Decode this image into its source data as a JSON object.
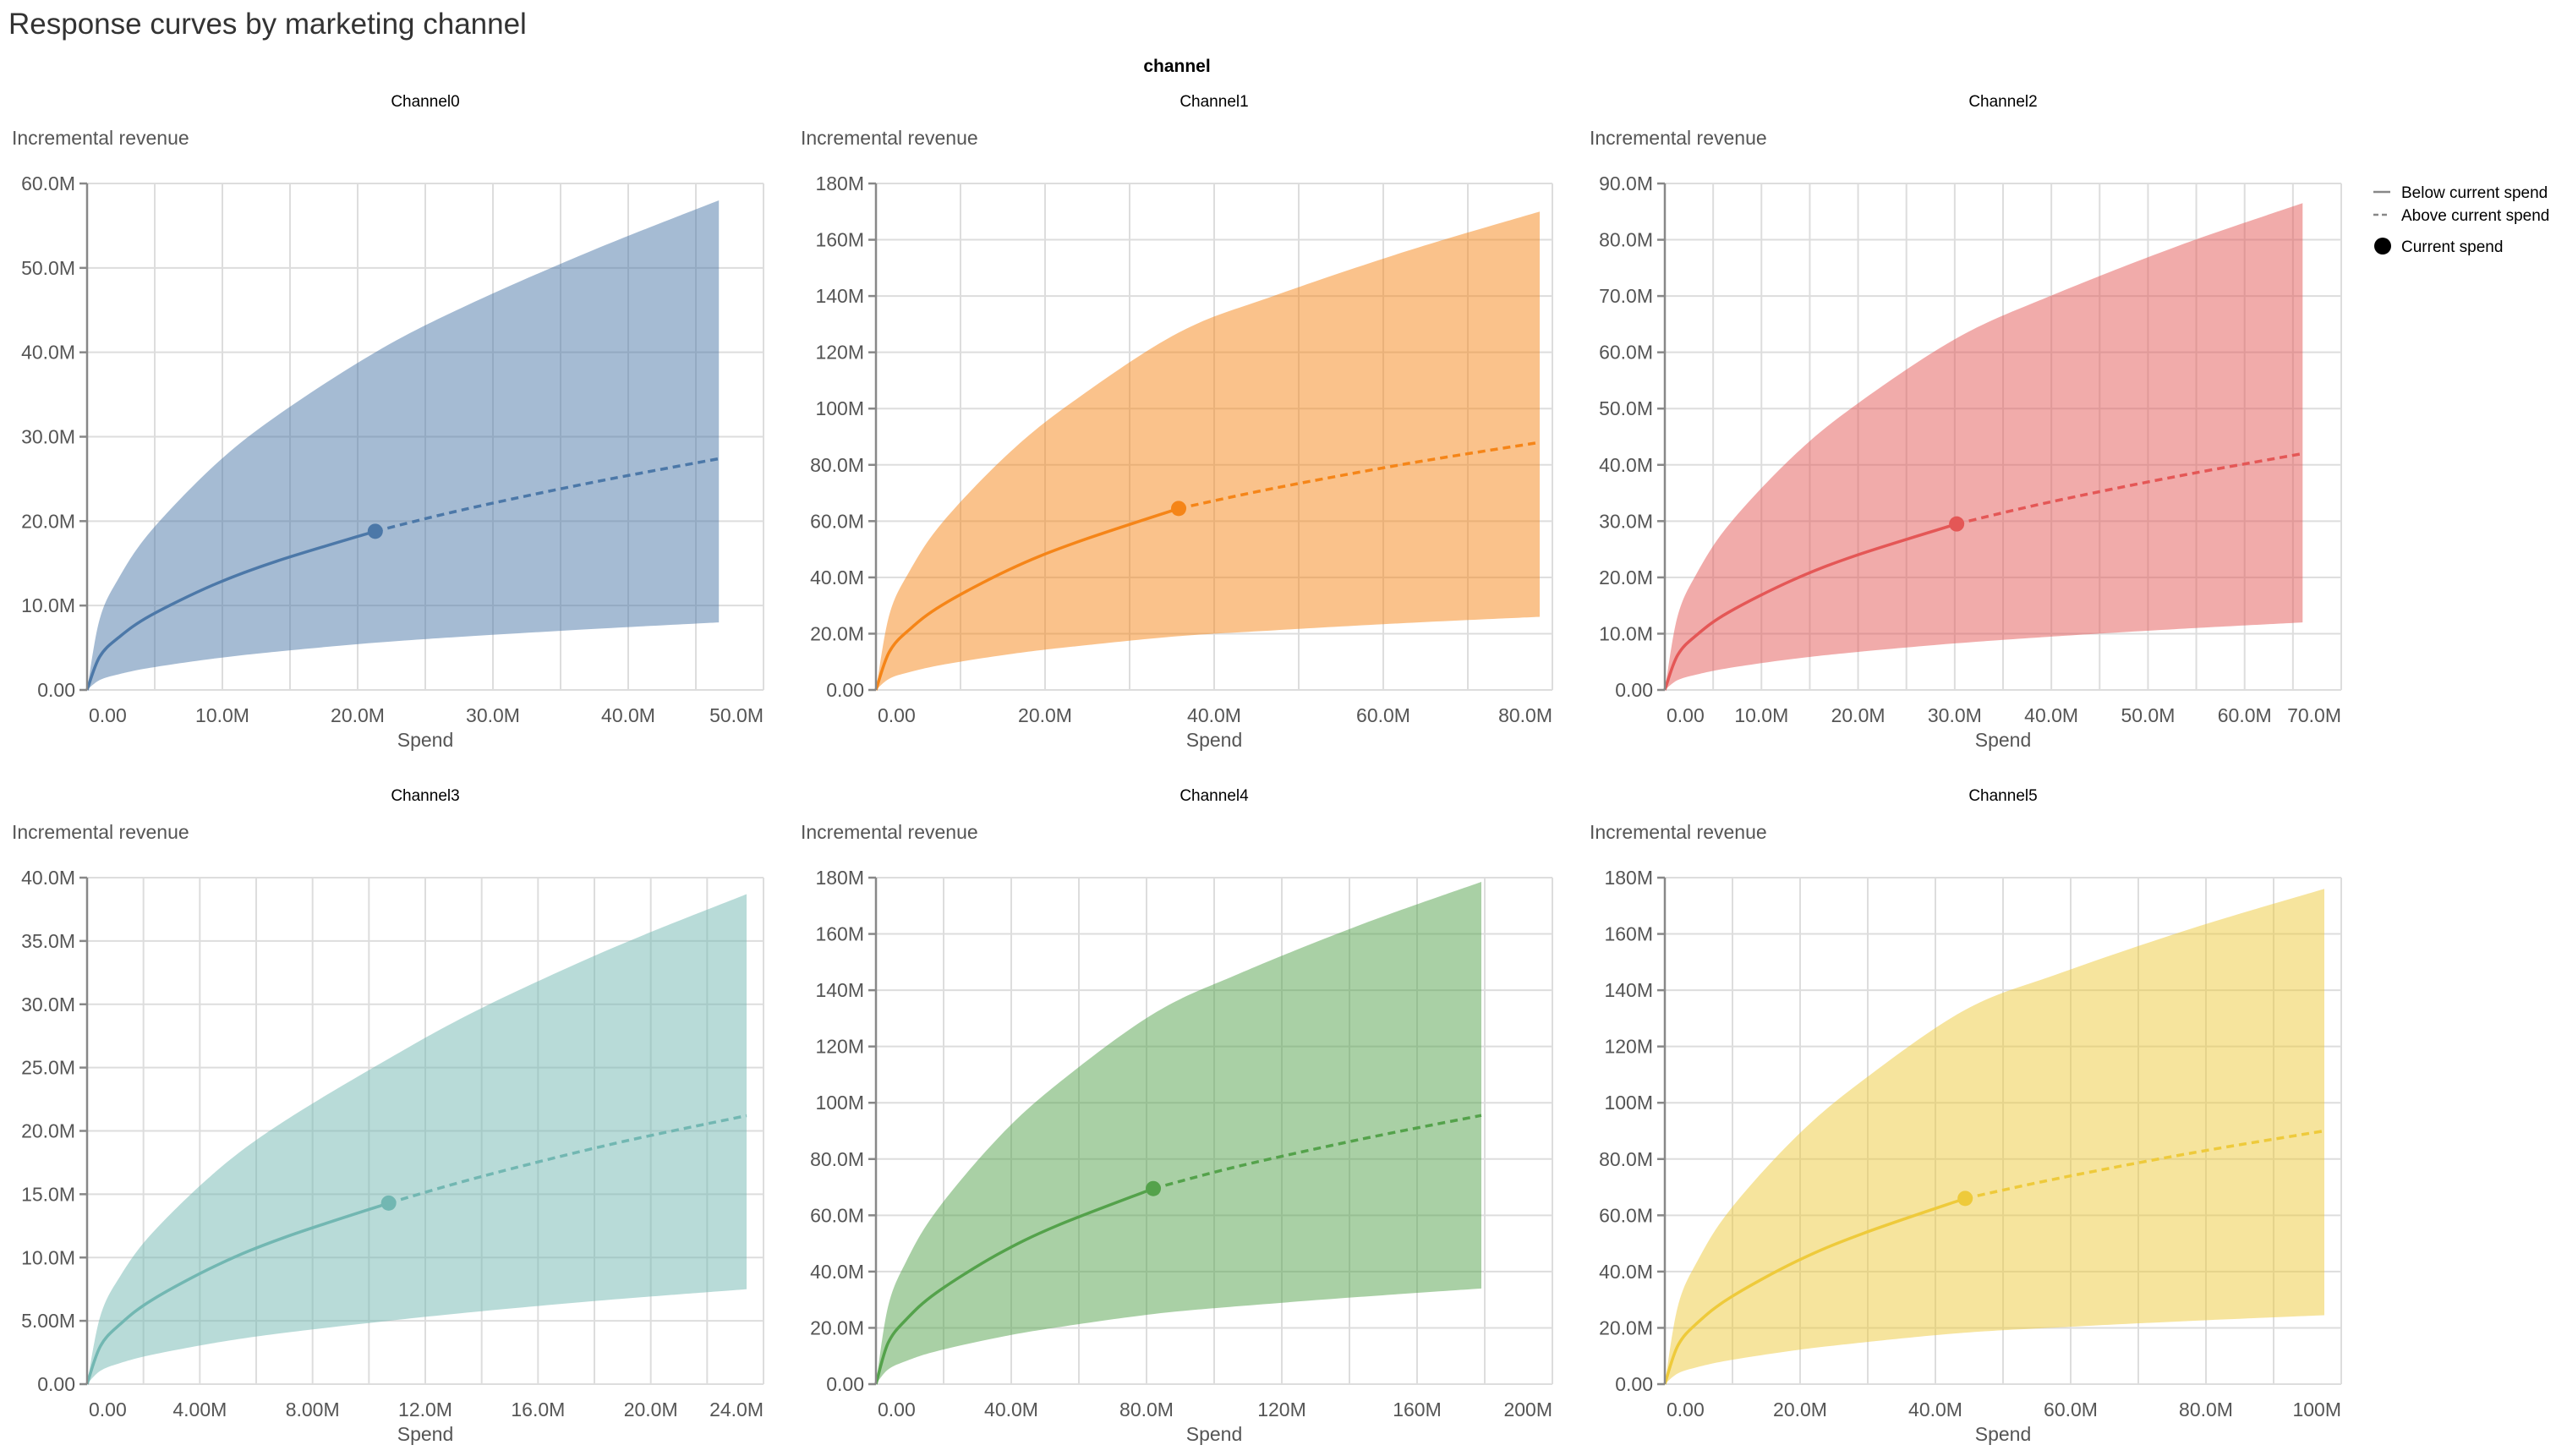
{
  "title": "Response curves by marketing channel",
  "facet_header": "channel",
  "legend": {
    "items": [
      {
        "label": "Below current spend",
        "symbol": "solid-line"
      },
      {
        "label": "Above current spend",
        "symbol": "dashed-line"
      },
      {
        "label": "Current spend",
        "symbol": "filled-circle"
      }
    ],
    "color": "#888888",
    "placement": "right"
  },
  "chart_data": [
    {
      "type": "area+line",
      "title": "Channel0",
      "xlabel": "Spend",
      "ylabel": "Incremental revenue",
      "color": "#4c78a8",
      "grid": true,
      "units": "M",
      "xlim": [
        0,
        50
      ],
      "ylim": [
        0,
        60
      ],
      "x_grid_step": 5,
      "y_grid_step": 10,
      "x_ticks": {
        "values": [
          0,
          10,
          20,
          30,
          40,
          50
        ],
        "labels": [
          "0.00",
          "10.0M",
          "20.0M",
          "30.0M",
          "40.0M",
          "50.0M"
        ]
      },
      "y_ticks": {
        "values": [
          0,
          10,
          20,
          30,
          40,
          50,
          60
        ],
        "labels": [
          "0.00",
          "10.0M",
          "20.0M",
          "30.0M",
          "40.0M",
          "50.0M",
          "60.0M"
        ]
      },
      "x": [
        0,
        0.93,
        2.34,
        4.67,
        9.34,
        14.0,
        21.3,
        28.0,
        37.4,
        46.7
      ],
      "mean": [
        0,
        3.94,
        6.22,
        8.8,
        12.45,
        15.25,
        18.8,
        21.43,
        24.6,
        27.4
      ],
      "lower": [
        0,
        1.17,
        1.85,
        2.62,
        3.71,
        4.54,
        5.6,
        6.33,
        7.22,
        8.0
      ],
      "upper": [
        0,
        8.38,
        13.24,
        18.73,
        26.49,
        32.44,
        40.0,
        45.5,
        52.1,
        58.0
      ],
      "current_spend": {
        "x": 21.3,
        "y": 18.8
      }
    },
    {
      "type": "area+line",
      "title": "Channel1",
      "xlabel": "Spend",
      "ylabel": "Incremental revenue",
      "color": "#f58518",
      "grid": true,
      "units": "M",
      "xlim": [
        0,
        80
      ],
      "ylim": [
        0,
        180
      ],
      "x_grid_step": 10,
      "y_grid_step": 20,
      "x_ticks": {
        "values": [
          0,
          20,
          40,
          60,
          80
        ],
        "labels": [
          "0.00",
          "20.0M",
          "40.0M",
          "60.0M",
          "80.0M"
        ]
      },
      "y_ticks": {
        "values": [
          0,
          20,
          40,
          60,
          80,
          100,
          120,
          140,
          160,
          180
        ],
        "labels": [
          "0.00",
          "20.0M",
          "40.0M",
          "60.0M",
          "80.0M",
          "100M",
          "120M",
          "140M",
          "160M",
          "180M"
        ]
      },
      "x": [
        0,
        1.57,
        3.93,
        7.85,
        15.7,
        23.55,
        35.8,
        47.1,
        62.8,
        78.5
      ],
      "mean": [
        0,
        13.5,
        21.4,
        30.2,
        42.7,
        52.3,
        64.5,
        71.7,
        80.4,
        88.0
      ],
      "lower": [
        0,
        4.0,
        6.32,
        8.94,
        12.65,
        15.49,
        19.1,
        21.2,
        23.8,
        26.0
      ],
      "upper": [
        0,
        26.6,
        42.0,
        59.5,
        84.1,
        103.0,
        127.0,
        140.1,
        156.0,
        170.0
      ],
      "current_spend": {
        "x": 35.8,
        "y": 64.5
      }
    },
    {
      "type": "area+line",
      "title": "Channel2",
      "xlabel": "Spend",
      "ylabel": "Incremental revenue",
      "color": "#e45756",
      "grid": true,
      "units": "M",
      "xlim": [
        0,
        70
      ],
      "ylim": [
        0,
        90
      ],
      "x_grid_step": 5,
      "y_grid_step": 10,
      "x_ticks": {
        "values": [
          0,
          10,
          20,
          30,
          40,
          50,
          60,
          70
        ],
        "labels": [
          "0.00",
          "10.0M",
          "20.0M",
          "30.0M",
          "40.0M",
          "50.0M",
          "60.0M",
          "70.0M"
        ]
      },
      "y_ticks": {
        "values": [
          0,
          10,
          20,
          30,
          40,
          50,
          60,
          70,
          80,
          90
        ],
        "labels": [
          "0.00",
          "10.0M",
          "20.0M",
          "30.0M",
          "40.0M",
          "50.0M",
          "60.0M",
          "70.0M",
          "80.0M",
          "90.0M"
        ]
      },
      "x": [
        0,
        1.32,
        3.3,
        6.6,
        13.2,
        19.8,
        30.2,
        39.6,
        52.8,
        66.0
      ],
      "mean": [
        0,
        6.18,
        9.77,
        13.8,
        19.5,
        23.9,
        29.5,
        33.3,
        37.9,
        42.0
      ],
      "lower": [
        0,
        1.74,
        2.75,
        3.89,
        5.5,
        6.73,
        8.3,
        9.43,
        10.8,
        12.0
      ],
      "upper": [
        0,
        13.1,
        20.7,
        29.3,
        41.4,
        50.7,
        62.5,
        69.8,
        78.7,
        86.5
      ],
      "current_spend": {
        "x": 30.2,
        "y": 29.5
      }
    },
    {
      "type": "area+line",
      "title": "Channel3",
      "xlabel": "Spend",
      "ylabel": "Incremental revenue",
      "color": "#72b7b2",
      "grid": true,
      "units": "M",
      "xlim": [
        0,
        24
      ],
      "ylim": [
        0,
        40
      ],
      "x_grid_step": 2,
      "y_grid_step": 5,
      "x_ticks": {
        "values": [
          0,
          4,
          8,
          12,
          16,
          20,
          24
        ],
        "labels": [
          "0.00",
          "4.00M",
          "8.00M",
          "12.0M",
          "16.0M",
          "20.0M",
          "24.0M"
        ]
      },
      "y_ticks": {
        "values": [
          0,
          5,
          10,
          15,
          20,
          25,
          30,
          35,
          40
        ],
        "labels": [
          "0.00",
          "5.00M",
          "10.0M",
          "15.0M",
          "20.0M",
          "25.0M",
          "30.0M",
          "35.0M",
          "40.0M"
        ]
      },
      "x": [
        0,
        0.47,
        1.17,
        2.34,
        4.68,
        7.02,
        10.7,
        14.0,
        18.7,
        23.4
      ],
      "mean": [
        0,
        2.99,
        4.73,
        6.7,
        9.47,
        11.6,
        14.3,
        16.4,
        19.0,
        21.2
      ],
      "lower": [
        0,
        1.05,
        1.66,
        2.34,
        3.31,
        4.06,
        5.0,
        5.76,
        6.69,
        7.5
      ],
      "upper": [
        0,
        5.38,
        8.51,
        12.0,
        17.0,
        20.8,
        25.7,
        29.7,
        34.5,
        38.7
      ],
      "current_spend": {
        "x": 10.7,
        "y": 14.3
      }
    },
    {
      "type": "area+line",
      "title": "Channel4",
      "xlabel": "Spend",
      "ylabel": "Incremental revenue",
      "color": "#54a24b",
      "grid": true,
      "units": "M",
      "xlim": [
        0,
        200
      ],
      "ylim": [
        0,
        180
      ],
      "x_grid_step": 20,
      "y_grid_step": 20,
      "x_ticks": {
        "values": [
          0,
          40,
          80,
          120,
          160,
          200
        ],
        "labels": [
          "0.00",
          "40.0M",
          "80.0M",
          "120M",
          "160M",
          "200M"
        ]
      },
      "y_ticks": {
        "values": [
          0,
          20,
          40,
          60,
          80,
          100,
          120,
          140,
          160,
          180
        ],
        "labels": [
          "0.00",
          "20.0M",
          "40.0M",
          "60.0M",
          "80.0M",
          "100M",
          "120M",
          "140M",
          "160M",
          "180M"
        ]
      },
      "x": [
        0,
        3.58,
        8.95,
        17.9,
        35.8,
        53.7,
        82.0,
        107.4,
        143.2,
        179.0
      ],
      "mean": [
        0,
        14.6,
        23.0,
        32.5,
        46.0,
        56.4,
        69.5,
        77.5,
        87.0,
        95.5
      ],
      "lower": [
        0,
        5.21,
        8.24,
        11.7,
        16.5,
        20.2,
        24.9,
        27.7,
        31.0,
        34.0
      ],
      "upper": [
        0,
        27.6,
        43.6,
        61.6,
        87.1,
        106.7,
        131.6,
        145.9,
        163.2,
        178.5
      ],
      "current_spend": {
        "x": 82.0,
        "y": 69.5
      }
    },
    {
      "type": "area+line",
      "title": "Channel5",
      "xlabel": "Spend",
      "ylabel": "Incremental revenue",
      "color": "#eeca3b",
      "grid": true,
      "units": "M",
      "xlim": [
        0,
        100
      ],
      "ylim": [
        0,
        180
      ],
      "x_grid_step": 10,
      "y_grid_step": 20,
      "x_ticks": {
        "values": [
          0,
          20,
          40,
          60,
          80,
          100
        ],
        "labels": [
          "0.00",
          "20.0M",
          "40.0M",
          "60.0M",
          "80.0M",
          "100M"
        ]
      },
      "y_ticks": {
        "values": [
          0,
          20,
          40,
          60,
          80,
          100,
          120,
          140,
          160,
          180
        ],
        "labels": [
          "0.00",
          "20.0M",
          "40.0M",
          "60.0M",
          "80.0M",
          "100M",
          "120M",
          "140M",
          "160M",
          "180M"
        ]
      },
      "x": [
        0,
        1.95,
        4.88,
        9.75,
        19.5,
        29.25,
        44.4,
        58.5,
        78.0,
        97.5
      ],
      "mean": [
        0,
        13.8,
        21.9,
        30.9,
        43.7,
        53.5,
        66.0,
        73.3,
        82.2,
        90.0
      ],
      "lower": [
        0,
        3.83,
        6.06,
        8.57,
        12.1,
        14.8,
        18.3,
        20.2,
        22.5,
        24.5
      ],
      "upper": [
        0,
        27.9,
        44.0,
        62.3,
        88.1,
        107.9,
        133.0,
        146.1,
        162.0,
        176.0
      ],
      "current_spend": {
        "x": 44.4,
        "y": 66.0
      }
    }
  ]
}
